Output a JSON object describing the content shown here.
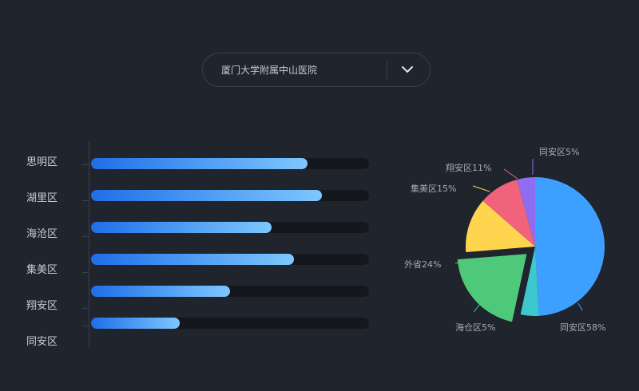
{
  "selector": {
    "value": "厦门大学附属中山医院"
  },
  "chart_data": [
    {
      "type": "bar",
      "orientation": "horizontal",
      "categories": [
        "思明区",
        "湖里区",
        "海沧区",
        "集美区",
        "翔安区",
        "同安区"
      ],
      "values": [
        78,
        83,
        65,
        73,
        50,
        32
      ],
      "xlim": [
        0,
        100
      ]
    },
    {
      "type": "pie",
      "slices": [
        {
          "label": "同安区58%",
          "value": 58,
          "color": "#3d9fff"
        },
        {
          "label": "海仓区5%",
          "value": 5,
          "color": "#3cc8cc"
        },
        {
          "label": "外省24%",
          "value": 24,
          "color": "#4ec97a",
          "exploded": true
        },
        {
          "label": "集美区15%",
          "value": 15,
          "color": "#ffd44e"
        },
        {
          "label": "翔安区11%",
          "value": 11,
          "color": "#f0637a"
        },
        {
          "label": "同安区5%",
          "value": 5,
          "color": "#8f6df0"
        }
      ]
    }
  ],
  "icons": {
    "dropdown": "chevron-down-icon"
  }
}
